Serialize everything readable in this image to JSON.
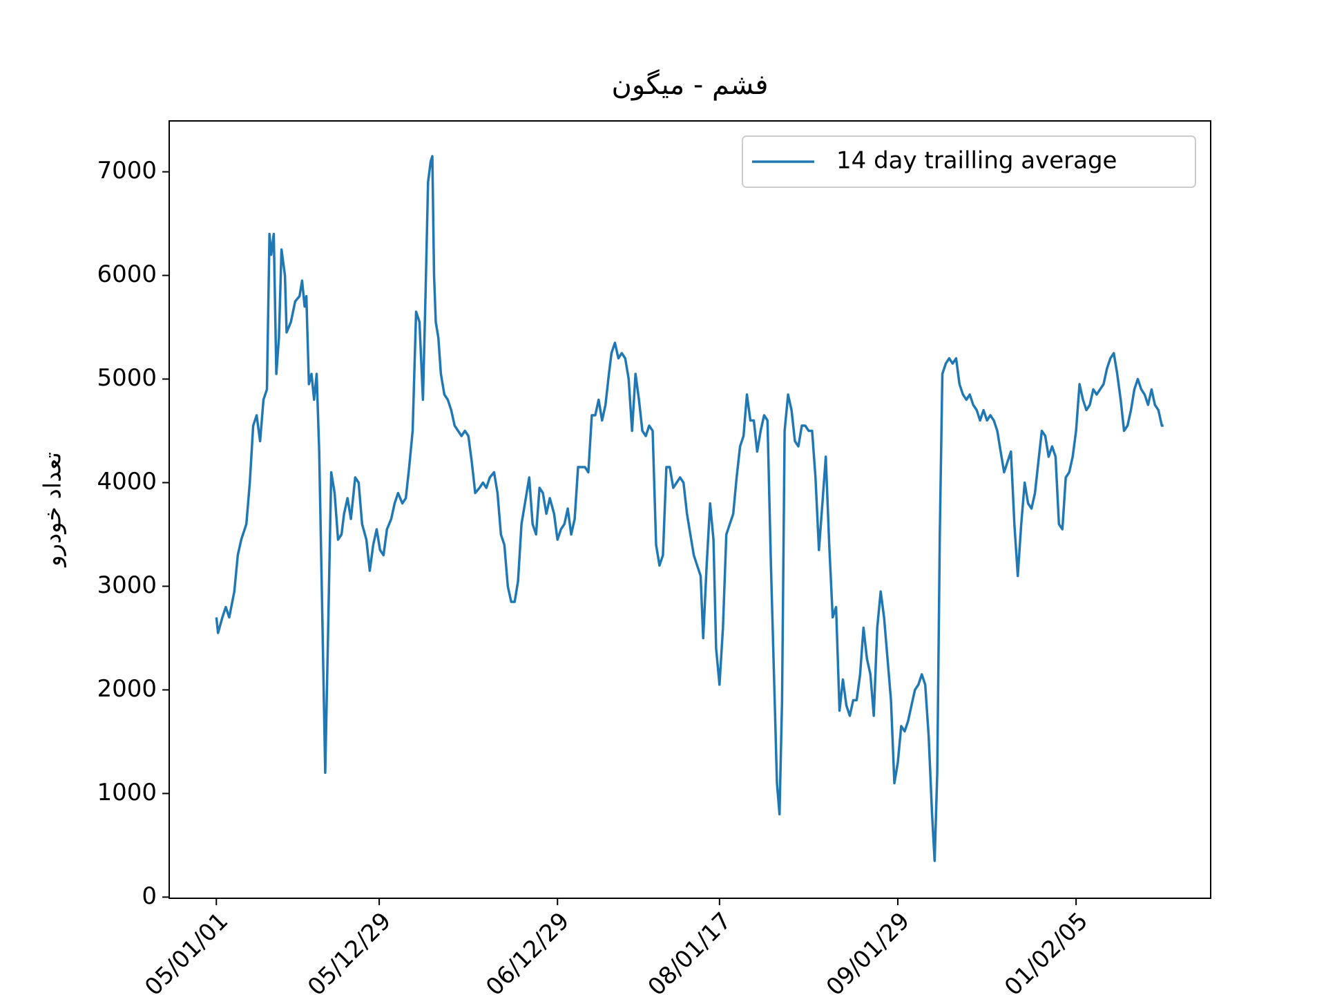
{
  "chart_data": {
    "type": "line",
    "title": "فشم - میگون",
    "y_label": "تعداد خودرو",
    "legend": "upper right",
    "grid": false,
    "xlim": [
      -55,
      1160
    ],
    "ylim": [
      -11,
      7491
    ],
    "xticks": [
      {
        "value": 0,
        "label": "05/01/01"
      },
      {
        "value": 190,
        "label": "05/12/29"
      },
      {
        "value": 398,
        "label": "06/12/29"
      },
      {
        "value": 587,
        "label": "08/01/17"
      },
      {
        "value": 795,
        "label": "09/01/29"
      },
      {
        "value": 1003,
        "label": "01/02/05"
      }
    ],
    "yticks": [
      0,
      1000,
      2000,
      3000,
      4000,
      5000,
      6000,
      7000
    ],
    "x": [
      0,
      2,
      7,
      11,
      15,
      21,
      25,
      29,
      35,
      39,
      43,
      47,
      51,
      55,
      59,
      62,
      64,
      67,
      70,
      73,
      76,
      80,
      82,
      87,
      92,
      97,
      100,
      103,
      105,
      108,
      111,
      114,
      117,
      120,
      123,
      127,
      130,
      134,
      138,
      142,
      146,
      149,
      153,
      157,
      162,
      166,
      170,
      175,
      179,
      183,
      187,
      191,
      195,
      199,
      204,
      208,
      212,
      217,
      221,
      225,
      229,
      233,
      237,
      241,
      244,
      247,
      250,
      252,
      254,
      256,
      259,
      262,
      266,
      270,
      274,
      278,
      282,
      286,
      290,
      294,
      298,
      302,
      307,
      311,
      315,
      319,
      324,
      328,
      332,
      336,
      340,
      344,
      348,
      352,
      356,
      360,
      365,
      369,
      373,
      377,
      381,
      385,
      389,
      394,
      398,
      402,
      406,
      410,
      414,
      418,
      422,
      426,
      430,
      434,
      438,
      442,
      446,
      450,
      454,
      458,
      461,
      465,
      469,
      473,
      477,
      481,
      485,
      489,
      493,
      497,
      501,
      505,
      509,
      513,
      517,
      521,
      525,
      529,
      533,
      537,
      541,
      545,
      549,
      553,
      557,
      561,
      565,
      568,
      572,
      576,
      580,
      583,
      587,
      591,
      595,
      599,
      603,
      607,
      611,
      615,
      619,
      623,
      627,
      631,
      635,
      639,
      643,
      647,
      651,
      654,
      657,
      660,
      663,
      667,
      671,
      675,
      679,
      683,
      687,
      691,
      695,
      699,
      703,
      707,
      711,
      715,
      719,
      723,
      727,
      731,
      735,
      739,
      743,
      747,
      751,
      755,
      759,
      763,
      767,
      771,
      775,
      779,
      783,
      787,
      791,
      795,
      799,
      803,
      807,
      811,
      815,
      819,
      823,
      827,
      831,
      835,
      838,
      841,
      844,
      847,
      851,
      855,
      859,
      863,
      867,
      871,
      875,
      879,
      883,
      887,
      891,
      895,
      899,
      903,
      907,
      911,
      915,
      919,
      923,
      927,
      931,
      935,
      939,
      943,
      947,
      951,
      955,
      959,
      963,
      967,
      971,
      975,
      979,
      983,
      987,
      991,
      995,
      999,
      1003,
      1007,
      1011,
      1015,
      1019,
      1023,
      1027,
      1031,
      1035,
      1039,
      1043,
      1047,
      1051,
      1055,
      1059,
      1063,
      1067,
      1071,
      1075,
      1079,
      1083,
      1087,
      1091,
      1095,
      1099,
      1103,
      1105
    ],
    "series": [
      {
        "name": "14 day trailling average",
        "color": "#1f77b4",
        "values": [
          2700,
          2550,
          2700,
          2800,
          2700,
          2950,
          3300,
          3450,
          3600,
          4000,
          4550,
          4650,
          4400,
          4800,
          4900,
          6400,
          6200,
          6400,
          5050,
          5400,
          6250,
          6000,
          5450,
          5550,
          5750,
          5800,
          5950,
          5700,
          5800,
          4950,
          5050,
          4800,
          5050,
          4300,
          3000,
          1200,
          2400,
          4100,
          3900,
          3450,
          3500,
          3700,
          3850,
          3650,
          4050,
          4000,
          3600,
          3450,
          3150,
          3400,
          3550,
          3350,
          3300,
          3550,
          3650,
          3800,
          3900,
          3800,
          3850,
          4150,
          4500,
          5650,
          5550,
          4800,
          5800,
          6900,
          7100,
          7150,
          6000,
          5550,
          5400,
          5050,
          4850,
          4800,
          4700,
          4550,
          4500,
          4450,
          4500,
          4450,
          4200,
          3900,
          3950,
          4000,
          3950,
          4050,
          4100,
          3900,
          3500,
          3400,
          3000,
          2850,
          2850,
          3050,
          3600,
          3800,
          4050,
          3600,
          3500,
          3950,
          3900,
          3700,
          3850,
          3700,
          3450,
          3550,
          3600,
          3750,
          3500,
          3650,
          4150,
          4150,
          4150,
          4100,
          4650,
          4650,
          4800,
          4600,
          4750,
          5050,
          5250,
          5350,
          5200,
          5250,
          5200,
          5000,
          4500,
          5050,
          4800,
          4500,
          4450,
          4550,
          4500,
          3400,
          3200,
          3300,
          4150,
          4150,
          3950,
          4000,
          4050,
          4000,
          3700,
          3500,
          3300,
          3200,
          3100,
          2500,
          3200,
          3800,
          3450,
          2400,
          2050,
          2600,
          3500,
          3600,
          3700,
          4050,
          4350,
          4450,
          4850,
          4600,
          4600,
          4300,
          4500,
          4650,
          4600,
          3200,
          2000,
          1100,
          800,
          1900,
          4500,
          4850,
          4700,
          4400,
          4350,
          4550,
          4550,
          4500,
          4500,
          4050,
          3350,
          3800,
          4250,
          3400,
          2700,
          2800,
          1800,
          2100,
          1850,
          1750,
          1900,
          1900,
          2150,
          2600,
          2300,
          2150,
          1750,
          2600,
          2950,
          2700,
          2300,
          1900,
          1100,
          1300,
          1650,
          1600,
          1700,
          1850,
          2000,
          2050,
          2150,
          2050,
          1550,
          800,
          350,
          1200,
          3500,
          5050,
          5150,
          5200,
          5150,
          5200,
          4950,
          4850,
          4800,
          4850,
          4750,
          4700,
          4600,
          4700,
          4600,
          4650,
          4600,
          4500,
          4300,
          4100,
          4200,
          4300,
          3600,
          3100,
          3600,
          4000,
          3800,
          3750,
          3900,
          4200,
          4500,
          4450,
          4250,
          4350,
          4250,
          3600,
          3550,
          4050,
          4100,
          4250,
          4500,
          4950,
          4800,
          4700,
          4750,
          4900,
          4850,
          4900,
          4950,
          5100,
          5200,
          5250,
          5050,
          4800,
          4500,
          4550,
          4700,
          4900,
          5000,
          4900,
          4850,
          4750,
          4900,
          4750,
          4700,
          4550,
          4550
        ]
      }
    ]
  }
}
